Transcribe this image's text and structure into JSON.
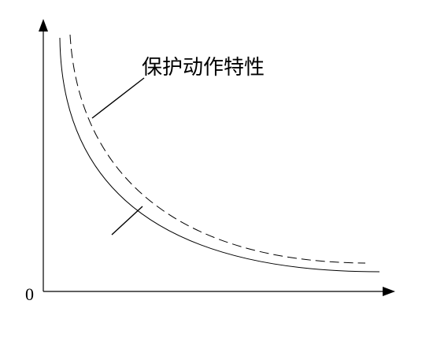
{
  "labels": {
    "origin": "0",
    "curve_annotation": "保护动作特性"
  },
  "style": {
    "line_color": "#000000",
    "background": "#ffffff"
  }
}
